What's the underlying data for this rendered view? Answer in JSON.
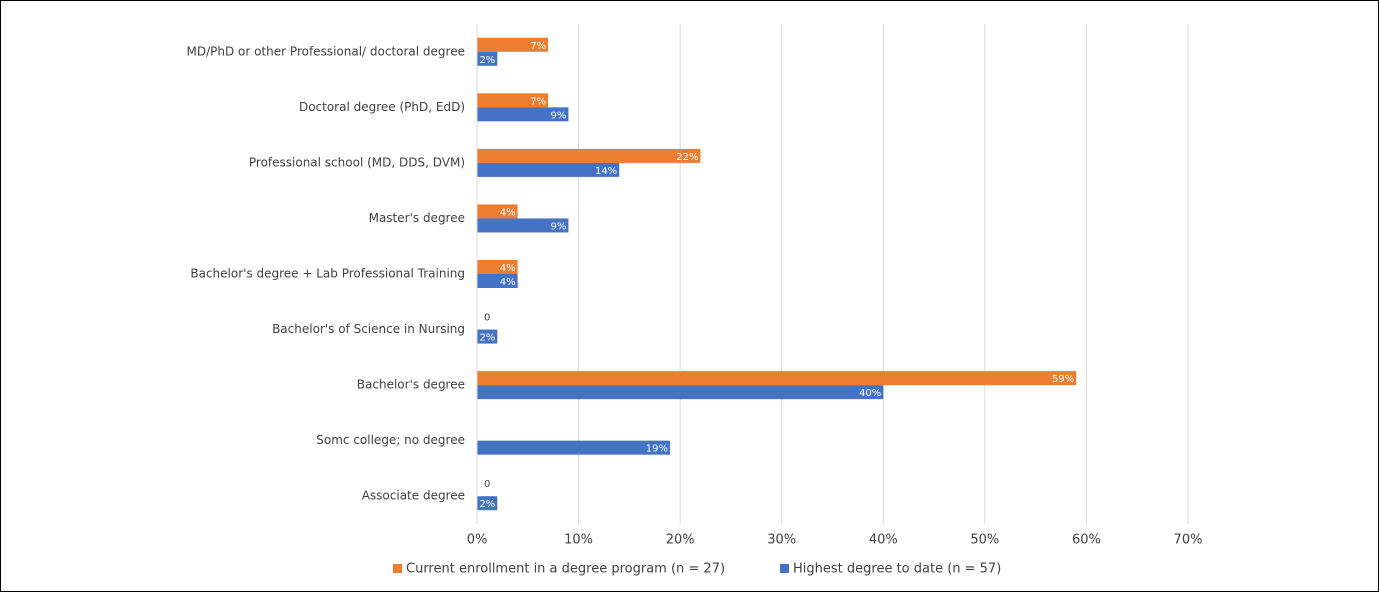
{
  "chart_data": {
    "type": "bar",
    "orientation": "horizontal",
    "categories": [
      "MD/PhD or other Professional/ doctoral degree",
      "Doctoral degree (PhD, EdD)",
      "Professional school (MD, DDS, DVM)",
      "Master's degree",
      "Bachelor's degree + Lab Professional Training",
      "Bachelor's of Science in Nursing",
      "Bachelor's degree",
      "Somc college; no degree",
      "Associate degree"
    ],
    "series": [
      {
        "name": "Current enrollment in a degree program (n = 27)",
        "color": "#ed7d31",
        "values": [
          7,
          7,
          22,
          4,
          4,
          0,
          59,
          null,
          0
        ],
        "value_labels": [
          "7%",
          "7%",
          "22%",
          "4%",
          "4%",
          "0",
          "59%",
          null,
          "0"
        ]
      },
      {
        "name": "Highest degree to date (n = 57)",
        "color": "#4472c4",
        "values": [
          2,
          9,
          14,
          9,
          4,
          2,
          40,
          19,
          2
        ],
        "value_labels": [
          "2%",
          "9%",
          "14%",
          "9%",
          "4%",
          "2%",
          "40%",
          "19%",
          "2%"
        ]
      }
    ],
    "xlim": [
      0,
      70
    ],
    "xticks": [
      {
        "value": 0,
        "label": "0%"
      },
      {
        "value": 10,
        "label": "10%"
      },
      {
        "value": 20,
        "label": "20%"
      },
      {
        "value": 30,
        "label": "30%"
      },
      {
        "value": 40,
        "label": "40%"
      },
      {
        "value": 50,
        "label": "50%"
      },
      {
        "value": 60,
        "label": "60%"
      },
      {
        "value": 70,
        "label": "70%"
      }
    ],
    "grid": true,
    "legend": "bottom"
  }
}
